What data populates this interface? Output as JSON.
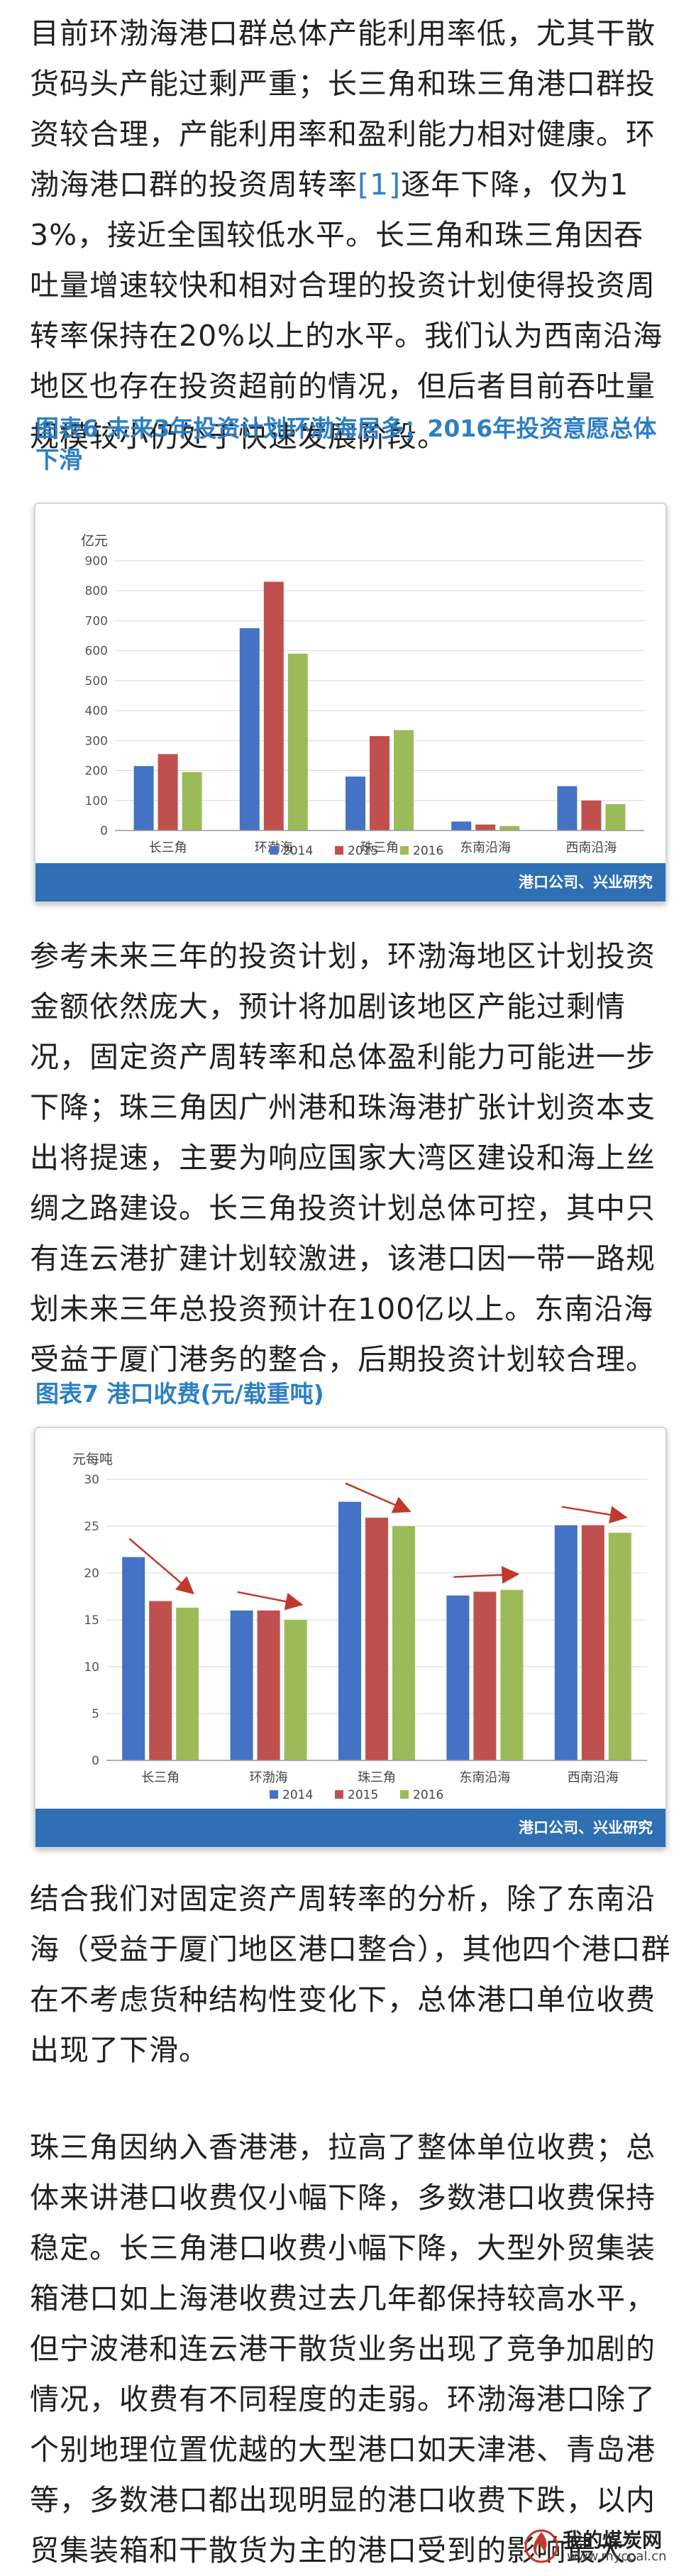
{
  "article": {
    "para1_before": "目前环渤海港口群总体产能利用率低，尤其干散货码头产能过剩严重；长三角和珠三角港口群投资较合理，产能利用率和盈利能力相对健康。环渤海港口群的投资周转率",
    "para1_ref": "[1]",
    "para1_after": "逐年下降，仅为13%，接近全国较低水平。长三角和珠三角因吞吐量增速较快和相对合理的投资计划使得投资周转率保持在20%以上的水平。我们认为西南沿海地区也存在投资超前的情况，但后者目前吞吐量规模较小仍处于快速发展阶段。",
    "para2": "参考未来三年的投资计划，环渤海地区计划投资金额依然庞大，预计将加剧该地区产能过剩情况，固定资产周转率和总体盈利能力可能进一步下降；珠三角因广州港和珠海港扩张计划资本支出将提速，主要为响应国家大湾区建设和海上丝绸之路建设。长三角投资计划总体可控，其中只有连云港扩建计划较激进，该港口因一带一路规划未来三年总投资预计在100亿以上。东南沿海受益于厦门港务的整合，后期投资计划较合理。",
    "para3": "结合我们对固定资产周转率的分析，除了东南沿海（受益于厦门地区港口整合），其他四个港口群在不考虑货种结构性变化下，总体港口单位收费出现了下滑。",
    "para4": "珠三角因纳入香港港，拉高了整体单位收费；总体来讲港口收费仅小幅下降，多数港口收费保持稳定。长三角港口收费小幅下降，大型外贸集装箱港口如上海港收费过去几年都保持较高水平，但宁波港和连云港干散货业务出现了竞争加剧的情况，收费有不同程度的走弱。环渤海港口除了个别地理位置优越的大型港口如天津港、青岛港等，多数港口都出现明显的港口收费下跌，以内贸集装箱和干散货为主的港口受到的影响最大。"
  },
  "figure6": {
    "title": "图表6  未来3年投资计划环渤海居多；2016年投资意愿总体下滑",
    "source": "港口公司、兴业研究"
  },
  "figure7": {
    "title": "图表7  港口收费(元/载重吨)",
    "source": "港口公司、兴业研究"
  },
  "logo": {
    "name": "我的煤炭网",
    "url": "www.mycoal.cn"
  },
  "colors": {
    "2014": "#4472c4",
    "2015": "#c0504d",
    "2016": "#9bbb59",
    "title": "#2d7fc4",
    "source_bar": "#2f6fb3",
    "arrow": "#c0392b"
  },
  "chart_data": [
    {
      "type": "bar",
      "title": "",
      "ylabel": "亿元",
      "ylim": [
        0,
        900
      ],
      "yticks": [
        "0",
        "100",
        "200",
        "300",
        "400",
        "500",
        "600",
        "700",
        "800",
        "900"
      ],
      "categories": [
        "长三角",
        "环渤海",
        "珠三角",
        "东南沿海",
        "西南沿海"
      ],
      "series": [
        {
          "name": "2014",
          "values": [
            215,
            675,
            180,
            30,
            148
          ]
        },
        {
          "name": "2015",
          "values": [
            255,
            830,
            315,
            20,
            100
          ]
        },
        {
          "name": "2016",
          "values": [
            195,
            590,
            335,
            15,
            88
          ]
        }
      ],
      "legend": "bottom",
      "grid": true
    },
    {
      "type": "bar",
      "title": "",
      "ylabel": "元每吨",
      "ylim": [
        0,
        30
      ],
      "yticks": [
        "0",
        "5",
        "10",
        "15",
        "20",
        "25",
        "30"
      ],
      "categories": [
        "长三角",
        "环渤海",
        "珠三角",
        "东南沿海",
        "西南沿海"
      ],
      "series": [
        {
          "name": "2014",
          "values": [
            21.7,
            16.0,
            27.6,
            17.6,
            25.1
          ]
        },
        {
          "name": "2015",
          "values": [
            17.0,
            16.0,
            25.9,
            18.0,
            25.1
          ]
        },
        {
          "name": "2016",
          "values": [
            16.3,
            15.0,
            25.0,
            18.2,
            24.3
          ]
        }
      ],
      "legend": "bottom",
      "grid": true,
      "annotations": "trend arrows above each group"
    }
  ]
}
